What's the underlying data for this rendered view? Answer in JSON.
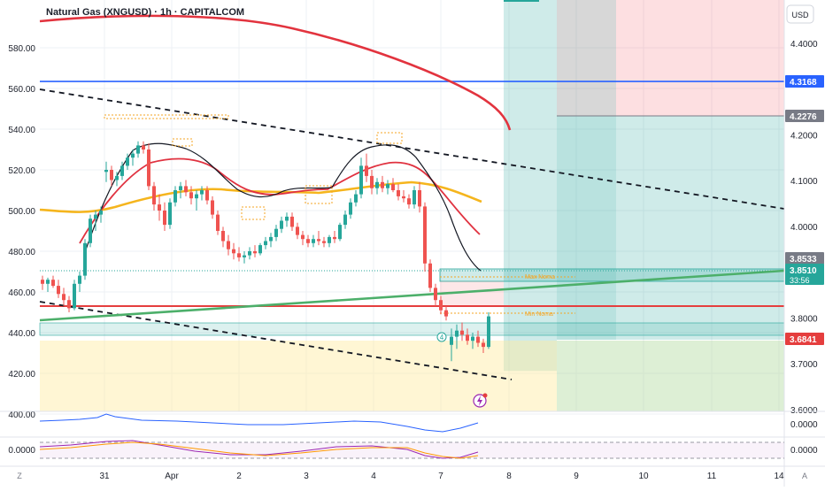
{
  "title": "Natural Gas (XNGUSD) · 1h · CAPITALCOM",
  "currency": "USD",
  "colors": {
    "bg": "#ffffff",
    "grid": "#eef0f4",
    "axis_text": "#1b1f2a",
    "candle_up": "#26a69a",
    "candle_down": "#ef5350",
    "ma_fast": "#131722",
    "ma_mid": "#e03240",
    "ma_slow": "#f5b51d",
    "ma_long": "#e2333e",
    "trendline_green": "#4caf6a",
    "hline_blue": "#2962ff",
    "hline_red": "#e53e3e",
    "dashed": "#131722",
    "long_green_fill": "rgba(38,166,154,0.22)",
    "long_red_fill": "rgba(242,54,69,0.16)",
    "yellow_zone": "rgba(255,235,160,0.45)",
    "green_zone": "rgba(170,215,150,0.40)",
    "gray_zone": "rgba(110,110,110,0.28)",
    "osc_blue": "#2962ff",
    "osc_purple": "#9c27b0",
    "osc_orange": "#ff9800"
  },
  "chart_data": {
    "type": "candlestick",
    "title": "Natural Gas (XNGUSD) · 1h · CAPITALCOM",
    "left_axis": {
      "ticks": [
        580.0,
        560.0,
        540.0,
        520.0,
        500.0,
        480.0,
        460.0,
        440.0,
        420.0,
        400.0
      ],
      "range": [
        383,
        585
      ]
    },
    "right_axis": {
      "ticks": [
        4.4,
        4.2,
        4.1,
        4.0,
        3.8,
        3.7,
        3.6
      ],
      "range": [
        3.5283,
        4.4926
      ]
    },
    "x_axis": {
      "ticks": [
        "31",
        "Apr",
        "2",
        "3",
        "4",
        "7",
        "8",
        "9",
        "10",
        "11",
        "14"
      ]
    },
    "price_labels": [
      {
        "name": "blue-line",
        "value": "4.3168",
        "color": "#2962ff"
      },
      {
        "name": "stop-top",
        "value": "4.2276",
        "color": "#787b86"
      },
      {
        "name": "box-top",
        "value": "3.8533",
        "color": "#787b86"
      },
      {
        "name": "last-price",
        "value": "3.8510",
        "sub": "33:56",
        "color": "#26a69a"
      },
      {
        "name": "red-line",
        "value": "3.6841",
        "color": "#e53e3e"
      }
    ],
    "candles": [
      {
        "o": 466,
        "h": 468,
        "l": 461,
        "c": 464
      },
      {
        "o": 464,
        "h": 467,
        "l": 460,
        "c": 466
      },
      {
        "o": 466,
        "h": 468,
        "l": 462,
        "c": 463
      },
      {
        "o": 463,
        "h": 466,
        "l": 457,
        "c": 459
      },
      {
        "o": 459,
        "h": 462,
        "l": 453,
        "c": 456
      },
      {
        "o": 456,
        "h": 458,
        "l": 450,
        "c": 452
      },
      {
        "o": 452,
        "h": 466,
        "l": 451,
        "c": 464
      },
      {
        "o": 464,
        "h": 470,
        "l": 460,
        "c": 468
      },
      {
        "o": 468,
        "h": 486,
        "l": 466,
        "c": 484
      },
      {
        "o": 484,
        "h": 498,
        "l": 482,
        "c": 496
      },
      {
        "o": 496,
        "h": 500,
        "l": 490,
        "c": 498
      },
      {
        "o": 498,
        "h": 502,
        "l": 494,
        "c": 500
      },
      {
        "o": 519,
        "h": 524,
        "l": 514,
        "c": 520
      },
      {
        "o": 520,
        "h": 522,
        "l": 512,
        "c": 515
      },
      {
        "o": 515,
        "h": 519,
        "l": 512,
        "c": 517
      },
      {
        "o": 517,
        "h": 524,
        "l": 515,
        "c": 522
      },
      {
        "o": 522,
        "h": 528,
        "l": 520,
        "c": 526
      },
      {
        "o": 526,
        "h": 530,
        "l": 522,
        "c": 528
      },
      {
        "o": 528,
        "h": 534,
        "l": 526,
        "c": 532
      },
      {
        "o": 532,
        "h": 534,
        "l": 528,
        "c": 530
      },
      {
        "o": 530,
        "h": 533,
        "l": 510,
        "c": 512
      },
      {
        "o": 512,
        "h": 514,
        "l": 500,
        "c": 503
      },
      {
        "o": 503,
        "h": 508,
        "l": 495,
        "c": 500
      },
      {
        "o": 500,
        "h": 504,
        "l": 490,
        "c": 493
      },
      {
        "o": 493,
        "h": 506,
        "l": 491,
        "c": 504
      },
      {
        "o": 504,
        "h": 512,
        "l": 502,
        "c": 510
      },
      {
        "o": 510,
        "h": 514,
        "l": 506,
        "c": 512
      },
      {
        "o": 512,
        "h": 515,
        "l": 507,
        "c": 509
      },
      {
        "o": 509,
        "h": 512,
        "l": 503,
        "c": 506
      },
      {
        "o": 506,
        "h": 510,
        "l": 500,
        "c": 508
      },
      {
        "o": 508,
        "h": 512,
        "l": 505,
        "c": 510
      },
      {
        "o": 510,
        "h": 512,
        "l": 503,
        "c": 505
      },
      {
        "o": 505,
        "h": 507,
        "l": 496,
        "c": 498
      },
      {
        "o": 498,
        "h": 500,
        "l": 488,
        "c": 490
      },
      {
        "o": 490,
        "h": 492,
        "l": 482,
        "c": 485
      },
      {
        "o": 485,
        "h": 488,
        "l": 478,
        "c": 481
      },
      {
        "o": 481,
        "h": 484,
        "l": 476,
        "c": 479
      },
      {
        "o": 479,
        "h": 482,
        "l": 475,
        "c": 477
      },
      {
        "o": 477,
        "h": 480,
        "l": 474,
        "c": 478
      },
      {
        "o": 478,
        "h": 482,
        "l": 476,
        "c": 480
      },
      {
        "o": 480,
        "h": 483,
        "l": 477,
        "c": 479
      },
      {
        "o": 479,
        "h": 484,
        "l": 478,
        "c": 483
      },
      {
        "o": 483,
        "h": 487,
        "l": 481,
        "c": 485
      },
      {
        "o": 485,
        "h": 489,
        "l": 482,
        "c": 487
      },
      {
        "o": 487,
        "h": 493,
        "l": 485,
        "c": 491
      },
      {
        "o": 491,
        "h": 497,
        "l": 489,
        "c": 495
      },
      {
        "o": 495,
        "h": 499,
        "l": 492,
        "c": 497
      },
      {
        "o": 497,
        "h": 499,
        "l": 490,
        "c": 492
      },
      {
        "o": 492,
        "h": 494,
        "l": 486,
        "c": 488
      },
      {
        "o": 488,
        "h": 490,
        "l": 483,
        "c": 486
      },
      {
        "o": 486,
        "h": 488,
        "l": 482,
        "c": 484
      },
      {
        "o": 484,
        "h": 488,
        "l": 482,
        "c": 486
      },
      {
        "o": 486,
        "h": 490,
        "l": 483,
        "c": 485
      },
      {
        "o": 485,
        "h": 487,
        "l": 482,
        "c": 484
      },
      {
        "o": 484,
        "h": 488,
        "l": 482,
        "c": 487
      },
      {
        "o": 487,
        "h": 490,
        "l": 484,
        "c": 486
      },
      {
        "o": 486,
        "h": 494,
        "l": 485,
        "c": 493
      },
      {
        "o": 493,
        "h": 500,
        "l": 491,
        "c": 498
      },
      {
        "o": 498,
        "h": 506,
        "l": 496,
        "c": 504
      },
      {
        "o": 504,
        "h": 510,
        "l": 502,
        "c": 508
      },
      {
        "o": 508,
        "h": 526,
        "l": 506,
        "c": 522
      },
      {
        "o": 522,
        "h": 528,
        "l": 514,
        "c": 517
      },
      {
        "o": 517,
        "h": 520,
        "l": 508,
        "c": 511
      },
      {
        "o": 511,
        "h": 516,
        "l": 508,
        "c": 514
      },
      {
        "o": 514,
        "h": 517,
        "l": 509,
        "c": 511
      },
      {
        "o": 511,
        "h": 515,
        "l": 508,
        "c": 513
      },
      {
        "o": 513,
        "h": 516,
        "l": 509,
        "c": 510
      },
      {
        "o": 510,
        "h": 513,
        "l": 505,
        "c": 507
      },
      {
        "o": 507,
        "h": 510,
        "l": 504,
        "c": 506
      },
      {
        "o": 506,
        "h": 508,
        "l": 501,
        "c": 503
      },
      {
        "o": 503,
        "h": 512,
        "l": 501,
        "c": 510
      },
      {
        "o": 510,
        "h": 514,
        "l": 499,
        "c": 502
      },
      {
        "o": 502,
        "h": 504,
        "l": 470,
        "c": 474
      },
      {
        "o": 474,
        "h": 476,
        "l": 460,
        "c": 462
      },
      {
        "o": 462,
        "h": 464,
        "l": 453,
        "c": 456
      },
      {
        "o": 456,
        "h": 458,
        "l": 449,
        "c": 451
      },
      {
        "o": 451,
        "h": 453,
        "l": 446,
        "c": 448
      },
      {
        "o": 434,
        "h": 442,
        "l": 426,
        "c": 438
      },
      {
        "o": 438,
        "h": 444,
        "l": 432,
        "c": 441
      },
      {
        "o": 441,
        "h": 445,
        "l": 436,
        "c": 439
      },
      {
        "o": 439,
        "h": 442,
        "l": 434,
        "c": 436
      },
      {
        "o": 436,
        "h": 440,
        "l": 432,
        "c": 438
      },
      {
        "o": 438,
        "h": 441,
        "l": 433,
        "c": 435
      },
      {
        "o": 435,
        "h": 437,
        "l": 430,
        "c": 433
      },
      {
        "o": 433,
        "h": 450,
        "l": 432,
        "c": 448
      }
    ],
    "annotations": [
      {
        "text": "Max Noma",
        "color": "#f5a623"
      },
      {
        "text": "Min Noma",
        "color": "#f5a623"
      },
      {
        "text": "4",
        "color": "#26a69a"
      }
    ],
    "oscillator_axis": {
      "ticks": [
        "0.0000",
        "0.0000"
      ]
    }
  },
  "bottom_bar": {
    "left_icon": "Z",
    "right_icon": "A"
  }
}
